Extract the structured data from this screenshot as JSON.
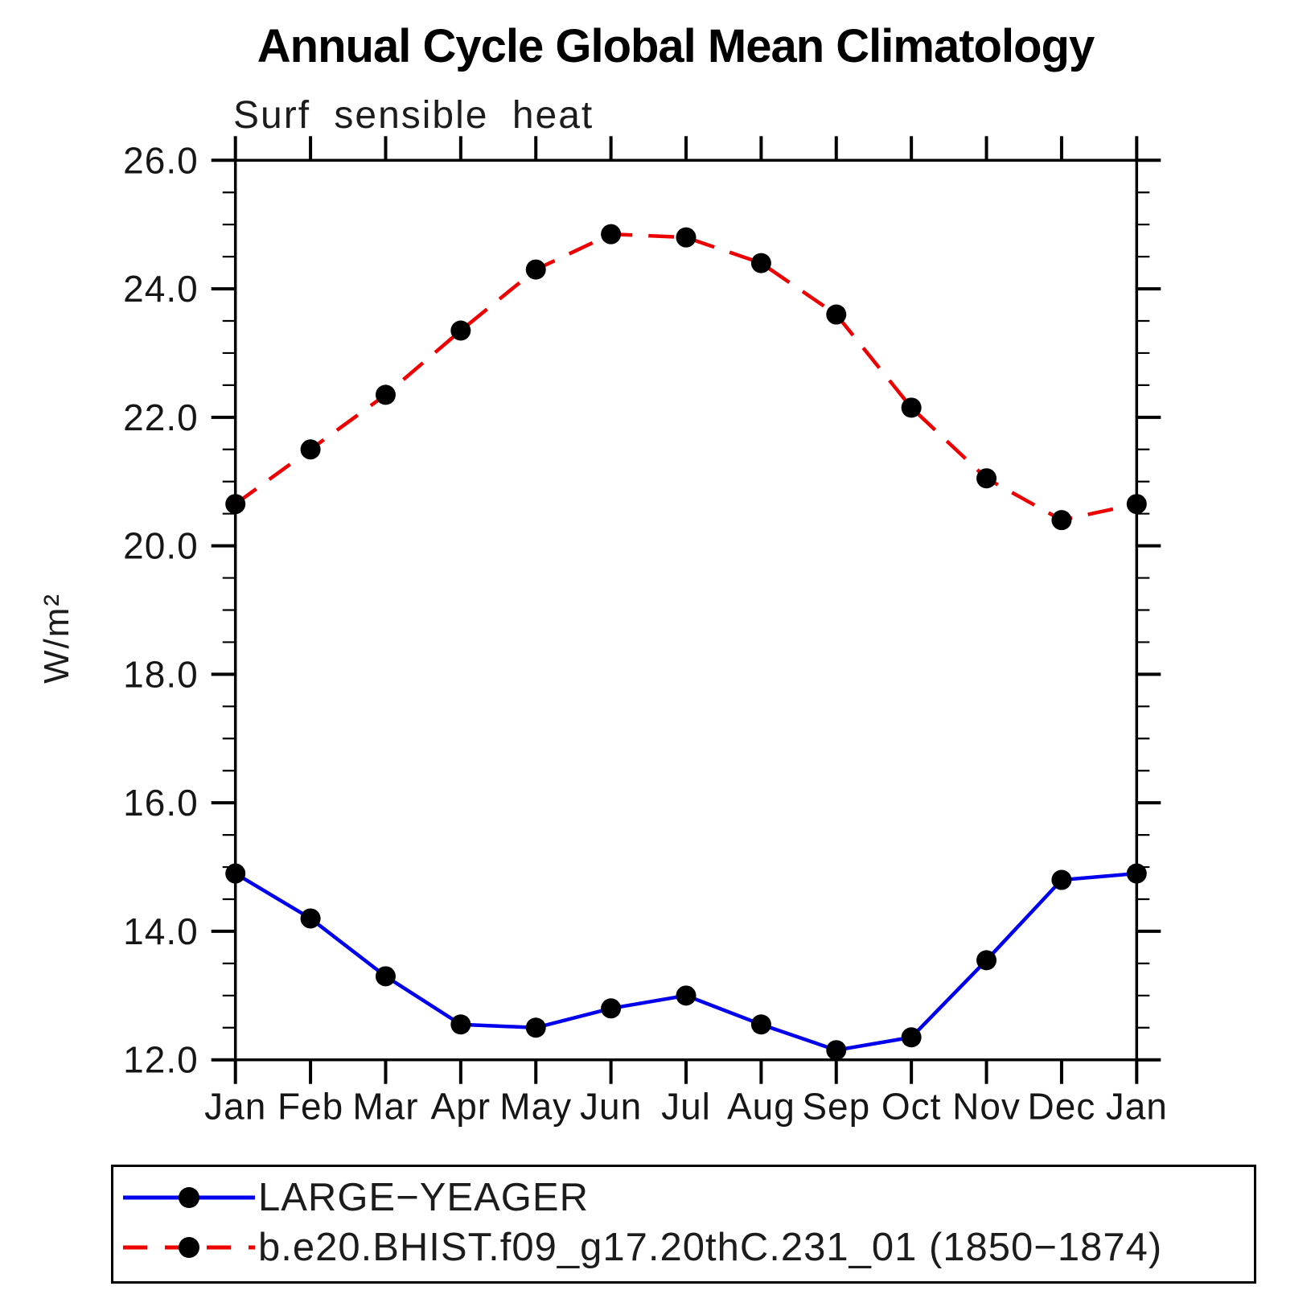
{
  "header": {
    "title": "Annual Cycle Global Mean Climatology",
    "subtitle": "Surf sensible heat"
  },
  "chart_data": {
    "type": "line",
    "title": "Annual Cycle Global Mean Climatology",
    "subtitle": "Surf sensible heat",
    "ylabel": "W/m²",
    "xlabel": "",
    "ylim": [
      12.0,
      26.0
    ],
    "y_major_step": 2.0,
    "y_minor_step": 0.5,
    "grid": false,
    "y_tick_labels": [
      "26.0",
      "24.0",
      "22.0",
      "20.0",
      "18.0",
      "16.0",
      "14.0",
      "12.0"
    ],
    "categories": [
      "Jan",
      "Feb",
      "Mar",
      "Apr",
      "May",
      "Jun",
      "Jul",
      "Aug",
      "Sep",
      "Oct",
      "Nov",
      "Dec",
      "Jan"
    ],
    "series": [
      {
        "name": "LARGE−YEAGER",
        "color": "#0000ee",
        "line_style": "solid",
        "marker": "black-filled-circle",
        "values": [
          14.9,
          14.2,
          13.3,
          12.55,
          12.5,
          12.8,
          13.0,
          12.55,
          12.15,
          12.35,
          13.55,
          14.8,
          14.9
        ]
      },
      {
        "name": "b.e20.BHIST.f09_g17.20thC.231_01 (1850−1874)",
        "color": "#ee0000",
        "line_style": "dashed",
        "marker": "black-filled-circle",
        "values": [
          20.65,
          21.5,
          22.35,
          23.35,
          24.3,
          24.85,
          24.8,
          24.4,
          23.6,
          22.15,
          21.05,
          20.4,
          20.65
        ]
      }
    ],
    "legend_position": "bottom-box"
  }
}
